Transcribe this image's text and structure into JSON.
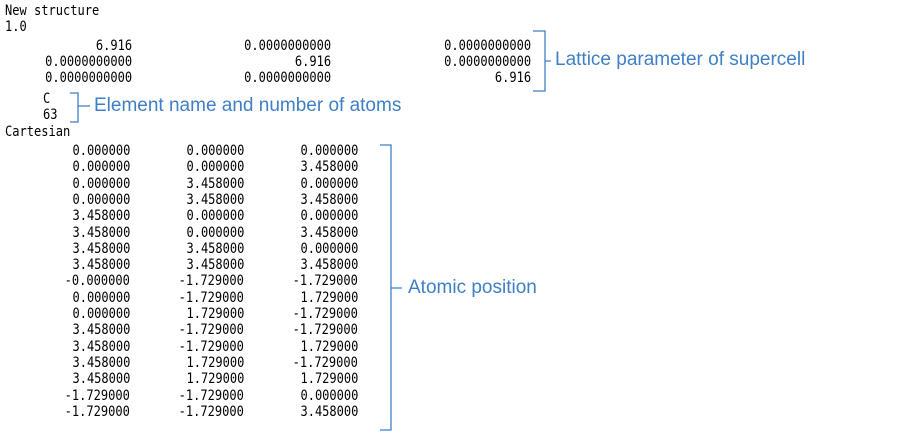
{
  "poscar": {
    "comment": "New structure",
    "scale": "1.0",
    "lattice": [
      [
        "6.916",
        "0.0000000000",
        "0.0000000000"
      ],
      [
        "0.0000000000",
        "6.916",
        "0.0000000000"
      ],
      [
        "0.0000000000",
        "0.0000000000",
        "6.916"
      ]
    ],
    "element": "C",
    "atom_count": "63",
    "coord_mode": "Cartesian",
    "positions": [
      [
        "0.000000",
        "0.000000",
        "0.000000"
      ],
      [
        "0.000000",
        "0.000000",
        "3.458000"
      ],
      [
        "0.000000",
        "3.458000",
        "0.000000"
      ],
      [
        "0.000000",
        "3.458000",
        "3.458000"
      ],
      [
        "3.458000",
        "0.000000",
        "0.000000"
      ],
      [
        "3.458000",
        "0.000000",
        "3.458000"
      ],
      [
        "3.458000",
        "3.458000",
        "0.000000"
      ],
      [
        "3.458000",
        "3.458000",
        "3.458000"
      ],
      [
        "-0.000000",
        "-1.729000",
        "-1.729000"
      ],
      [
        "0.000000",
        "-1.729000",
        "1.729000"
      ],
      [
        "0.000000",
        "1.729000",
        "-1.729000"
      ],
      [
        "3.458000",
        "-1.729000",
        "-1.729000"
      ],
      [
        "3.458000",
        "-1.729000",
        "1.729000"
      ],
      [
        "3.458000",
        "1.729000",
        "-1.729000"
      ],
      [
        "3.458000",
        "1.729000",
        "1.729000"
      ],
      [
        "-1.729000",
        "-1.729000",
        "0.000000"
      ],
      [
        "-1.729000",
        "-1.729000",
        "3.458000"
      ]
    ]
  },
  "annotations": {
    "lattice": "Lattice parameter of supercell",
    "element": "Element name and number of atoms",
    "positions": "Atomic position"
  },
  "colors": {
    "annotation": "#3f7fc6",
    "text": "#000000"
  }
}
